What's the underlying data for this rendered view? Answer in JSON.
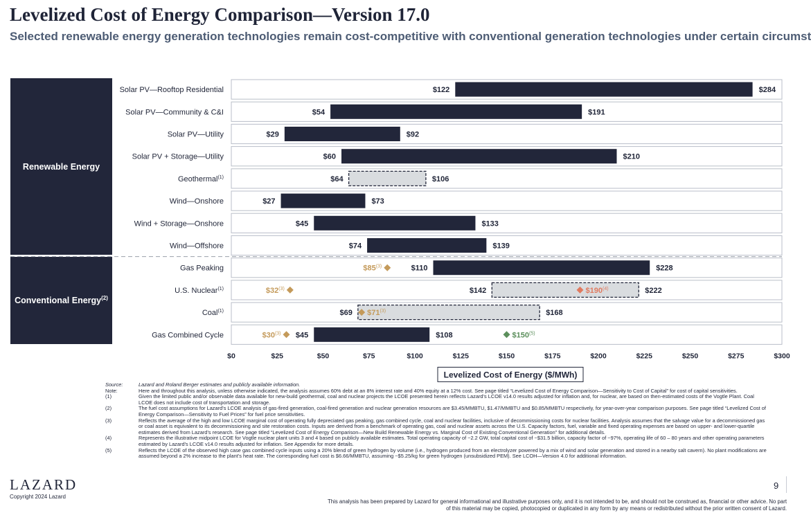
{
  "header": {
    "title": "Levelized Cost of Energy Comparison—Version 17.0",
    "subtitle": "Selected renewable energy generation technologies remain cost-competitive with conventional generation technologies under certain circumstances"
  },
  "groups": {
    "renewable": "Renewable Energy",
    "conventional": "Conventional Energy",
    "conventional_note": "(2)"
  },
  "colors": {
    "bar": "#22263a",
    "hatched_fill": "#d9dcdf",
    "marginal_marker": "#c49a5a",
    "nuclear_marker": "#e07a5f",
    "hydrogen_marker": "#5c8f5c",
    "grid": "#b9bec8"
  },
  "chart_data": {
    "type": "bar",
    "orientation": "horizontal-range",
    "xlabel": "Levelized Cost of Energy ($/MWh)",
    "xlim": [
      0,
      300
    ],
    "xticks": [
      0,
      25,
      50,
      75,
      100,
      125,
      150,
      175,
      200,
      225,
      250,
      275,
      300
    ],
    "tick_labels": [
      "$0",
      "$25",
      "$50",
      "$75",
      "$100",
      "$125",
      "$150",
      "$175",
      "$200",
      "$225",
      "$250",
      "$275",
      "$300"
    ],
    "categories": [
      {
        "label": "Solar PV—Rooftop Residential",
        "note": "",
        "low": 122,
        "high": 284,
        "low_label": "$122",
        "high_label": "$284",
        "style": "solid",
        "group": "renewable"
      },
      {
        "label": "Solar PV—Community & C&I",
        "note": "",
        "low": 54,
        "high": 191,
        "low_label": "$54",
        "high_label": "$191",
        "style": "solid",
        "group": "renewable"
      },
      {
        "label": "Solar PV—Utility",
        "note": "",
        "low": 29,
        "high": 92,
        "low_label": "$29",
        "high_label": "$92",
        "style": "solid",
        "group": "renewable"
      },
      {
        "label": "Solar PV + Storage—Utility",
        "note": "",
        "low": 60,
        "high": 210,
        "low_label": "$60",
        "high_label": "$210",
        "style": "solid",
        "group": "renewable"
      },
      {
        "label": "Geothermal",
        "note": "(1)",
        "low": 64,
        "high": 106,
        "low_label": "$64",
        "high_label": "$106",
        "style": "dashed",
        "group": "renewable"
      },
      {
        "label": "Wind—Onshore",
        "note": "",
        "low": 27,
        "high": 73,
        "low_label": "$27",
        "high_label": "$73",
        "style": "solid",
        "group": "renewable"
      },
      {
        "label": "Wind + Storage—Onshore",
        "note": "",
        "low": 45,
        "high": 133,
        "low_label": "$45",
        "high_label": "$133",
        "style": "solid",
        "group": "renewable"
      },
      {
        "label": "Wind—Offshore",
        "note": "",
        "low": 74,
        "high": 139,
        "low_label": "$74",
        "high_label": "$139",
        "style": "solid",
        "group": "renewable"
      },
      {
        "label": "Gas Peaking",
        "note": "",
        "low": 110,
        "high": 228,
        "low_label": "$110",
        "high_label": "$228",
        "style": "solid",
        "group": "conventional",
        "markers": [
          {
            "value": 85,
            "label": "$85",
            "note": "(3)",
            "kind": "marginal",
            "side": "left"
          }
        ]
      },
      {
        "label": "U.S. Nuclear",
        "note": "(1)",
        "low": 142,
        "high": 222,
        "low_label": "$142",
        "high_label": "$222",
        "style": "dashed",
        "group": "conventional",
        "markers": [
          {
            "value": 32,
            "label": "$32",
            "note": "(3)",
            "kind": "marginal",
            "side": "left"
          },
          {
            "value": 190,
            "label": "$190",
            "note": "(4)",
            "kind": "nuclear",
            "side": "right"
          }
        ]
      },
      {
        "label": "Coal",
        "note": "(1)",
        "low": 69,
        "high": 168,
        "low_label": "$69",
        "high_label": "$168",
        "style": "dashed",
        "group": "conventional",
        "markers": [
          {
            "value": 71,
            "label": "$71",
            "note": "(3)",
            "kind": "marginal",
            "side": "right"
          }
        ]
      },
      {
        "label": "Gas Combined Cycle",
        "note": "",
        "low": 45,
        "high": 108,
        "low_label": "$45",
        "high_label": "$108",
        "style": "solid",
        "group": "conventional",
        "markers": [
          {
            "value": 30,
            "label": "$30",
            "note": "(3)",
            "kind": "marginal",
            "side": "left"
          },
          {
            "value": 150,
            "label": "$150",
            "note": "(5)",
            "kind": "hydrogen",
            "side": "right"
          }
        ]
      }
    ]
  },
  "footnotes": [
    {
      "key": "Source:",
      "text": "Lazard and Roland Berger estimates and publicly available information.",
      "italic": true
    },
    {
      "key": "Note:",
      "text": "Here and throughout this analysis, unless otherwise indicated, the analysis assumes 60% debt at an 8% interest rate and 40% equity at a 12% cost. See page titled “Levelized Cost of Energy Comparison—Sensitivity to Cost of Capital” for cost of capital sensitivities.",
      "italic": false
    },
    {
      "key": "(1)",
      "text": "Given the limited public and/or observable data available for new-build geothermal, coal and nuclear projects the LCOE presented herein reflects Lazard’s LCOE v14.0 results adjusted for inflation and, for nuclear, are based on then-estimated costs of the Vogtle Plant. Coal LCOE does not include cost of transportation and storage.",
      "italic": false
    },
    {
      "key": "(2)",
      "text": "The fuel cost assumptions for Lazard’s LCOE analysis of gas-fired generation, coal-fired generation and nuclear generation resources are $3.45/MMBTU, $1.47/MMBTU and $0.85/MMBTU respectively, for year-over-year comparison purposes. See page titled “Levelized Cost of Energy Comparison—Sensitivity to Fuel Prices” for fuel price sensitivities.",
      "italic": false
    },
    {
      "key": "(3)",
      "text": "Reflects the average of the high and low LCOE marginal cost of operating fully depreciated gas peaking, gas combined cycle, coal and nuclear facilities, inclusive of decommissioning costs for nuclear facilities. Analysis assumes that the salvage value for a decommissioned gas or coal asset is equivalent to its decommissioning and site restoration costs. Inputs are derived from a benchmark of operating gas, coal and nuclear assets across the U.S. Capacity factors, fuel, variable and fixed operating expenses are based on upper- and lower-quartile estimates derived from Lazard’s research. See page titled “Levelized Cost of Energy Comparison—New Build Renewable Energy vs. Marginal Cost of Existing Conventional Generation” for additional details.",
      "italic": false
    },
    {
      "key": "(4)",
      "text": "Represents the illustrative midpoint LCOE for Vogtle nuclear plant units 3 and 4 based on publicly available estimates. Total operating capacity of ~2.2 GW, total capital cost of ~$31.5 billion, capacity factor of ~97%, operating life of 60 – 80 years and other operating parameters estimated by Lazard’s LCOE v14.0 results adjusted for inflation. See Appendix for more details.",
      "italic": false
    },
    {
      "key": "(5)",
      "text": "Reflects the LCOE of the observed high case gas combined cycle inputs using a 20% blend of green hydrogen by volume (i.e., hydrogen produced from an electrolyzer powered by a mix of wind and solar generation and stored in a nearby salt cavern). No plant modifications are assumed beyond a 2% increase to the plant’s heat rate. The corresponding fuel cost is $6.66/MMBTU, assuming ~$5.25/kg for green hydrogen (unsubsidized PEM). See LCOH—Version 4.0 for additional information.",
      "italic": false
    }
  ],
  "footer": {
    "logo": "LAZARD",
    "copyright": "Copyright 2024 Lazard",
    "page_number": "9",
    "disclaimer": "This analysis has been prepared by Lazard for general informational and illustrative purposes only, and it is not intended to be, and should not be construed as, financial or other advice. No part of this material may be copied, photocopied or duplicated in any form by any means or redistributed without the prior written consent of Lazard."
  }
}
